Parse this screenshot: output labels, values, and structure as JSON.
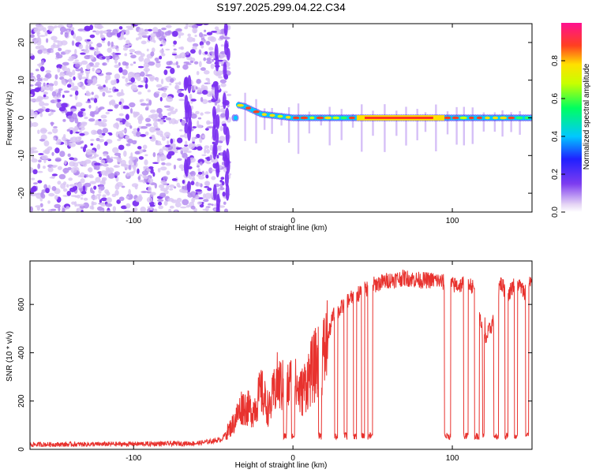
{
  "figure_title": "S197.2025.299.04.22.C34",
  "chart_data": [
    {
      "type": "heatmap",
      "title": "S197.2025.299.04.22.C34",
      "xlabel": "Height of straight line (km)",
      "ylabel": "Frequency (Hz)",
      "xlim": [
        -165,
        150
      ],
      "ylim": [
        -25,
        25
      ],
      "xticks": [
        -100,
        0,
        100
      ],
      "yticks": [
        -20,
        -10,
        0,
        10,
        20
      ],
      "noise_region_km": [
        -165,
        -40
      ],
      "tone_frequency_hz": 0,
      "tone_onset": [
        {
          "x": -35,
          "y": 3.5
        },
        {
          "x": -30,
          "y": 3.0
        },
        {
          "x": -25,
          "y": 2.0
        },
        {
          "x": -20,
          "y": 1.0
        },
        {
          "x": -10,
          "y": 0.5
        },
        {
          "x": 0,
          "y": 0
        },
        {
          "x": 150,
          "y": 0
        }
      ],
      "colorbar": {
        "label": "Normalized spectral amplitude",
        "range": [
          0,
          1
        ],
        "ticks": [
          0.0,
          0.2,
          0.4,
          0.6,
          0.8
        ]
      }
    },
    {
      "type": "line",
      "title": "",
      "xlabel": "Height of straight line (km)",
      "ylabel": "SNR (10 * v/v)",
      "xlim": [
        -165,
        150
      ],
      "ylim": [
        0,
        780
      ],
      "xticks": [
        -100,
        0,
        100
      ],
      "yticks": [
        0,
        200,
        400,
        600
      ],
      "series": [
        {
          "name": "SNR",
          "color": "#e8322e",
          "x": [
            -165,
            -100,
            -60,
            -45,
            -38,
            -32,
            -25,
            -20,
            -15,
            -10,
            -5,
            0,
            5,
            10,
            15,
            20,
            25,
            30,
            35,
            40,
            45,
            50,
            60,
            70,
            80,
            90,
            95,
            100,
            105,
            110,
            115,
            120,
            125,
            130,
            135,
            140,
            145,
            150
          ],
          "values": [
            20,
            22,
            25,
            40,
            100,
            180,
            160,
            240,
            160,
            280,
            250,
            280,
            230,
            300,
            360,
            400,
            550,
            580,
            620,
            640,
            660,
            680,
            700,
            710,
            700,
            700,
            690,
            680,
            680,
            700,
            650,
            440,
            520,
            690,
            640,
            700,
            650,
            700
          ]
        }
      ],
      "dropouts": {
        "floor_snr": 55,
        "ranges_km": [
          [
            -6,
            -4
          ],
          [
            -1,
            1
          ],
          [
            16,
            18
          ],
          [
            26,
            28
          ],
          [
            32,
            34
          ],
          [
            38,
            40
          ],
          [
            43,
            45
          ],
          [
            47,
            50
          ],
          [
            95,
            99
          ],
          [
            107,
            110
          ],
          [
            114,
            117
          ],
          [
            119,
            120
          ],
          [
            126,
            129
          ],
          [
            133,
            135
          ],
          [
            139,
            141
          ],
          [
            146,
            148
          ]
        ]
      }
    }
  ]
}
